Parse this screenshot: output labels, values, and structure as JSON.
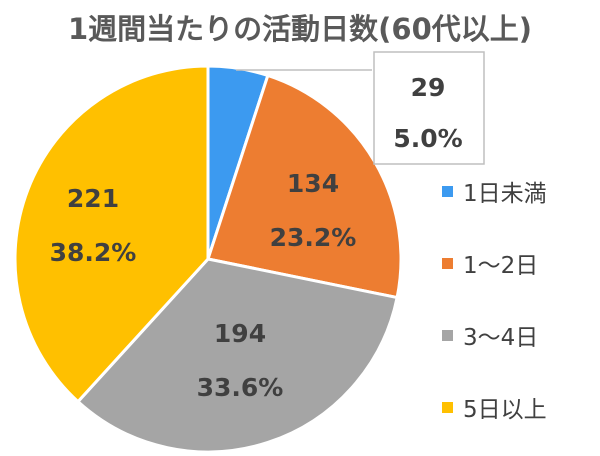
{
  "chart_data": {
    "type": "pie",
    "title": "1週間当たりの活動日数(60代以上)",
    "categories": [
      "1日未満",
      "1～2日",
      "3～4日",
      "5日以上"
    ],
    "values": [
      29,
      134,
      194,
      221
    ],
    "percent_labels": [
      "5.0%",
      "23.2%",
      "33.6%",
      "38.2%"
    ],
    "value_labels": [
      "29",
      "134",
      "194",
      "221"
    ],
    "colors": [
      "#3C9AF0",
      "#ED7D31",
      "#A5A5A5",
      "#FFC000"
    ],
    "legend_position": "right"
  }
}
